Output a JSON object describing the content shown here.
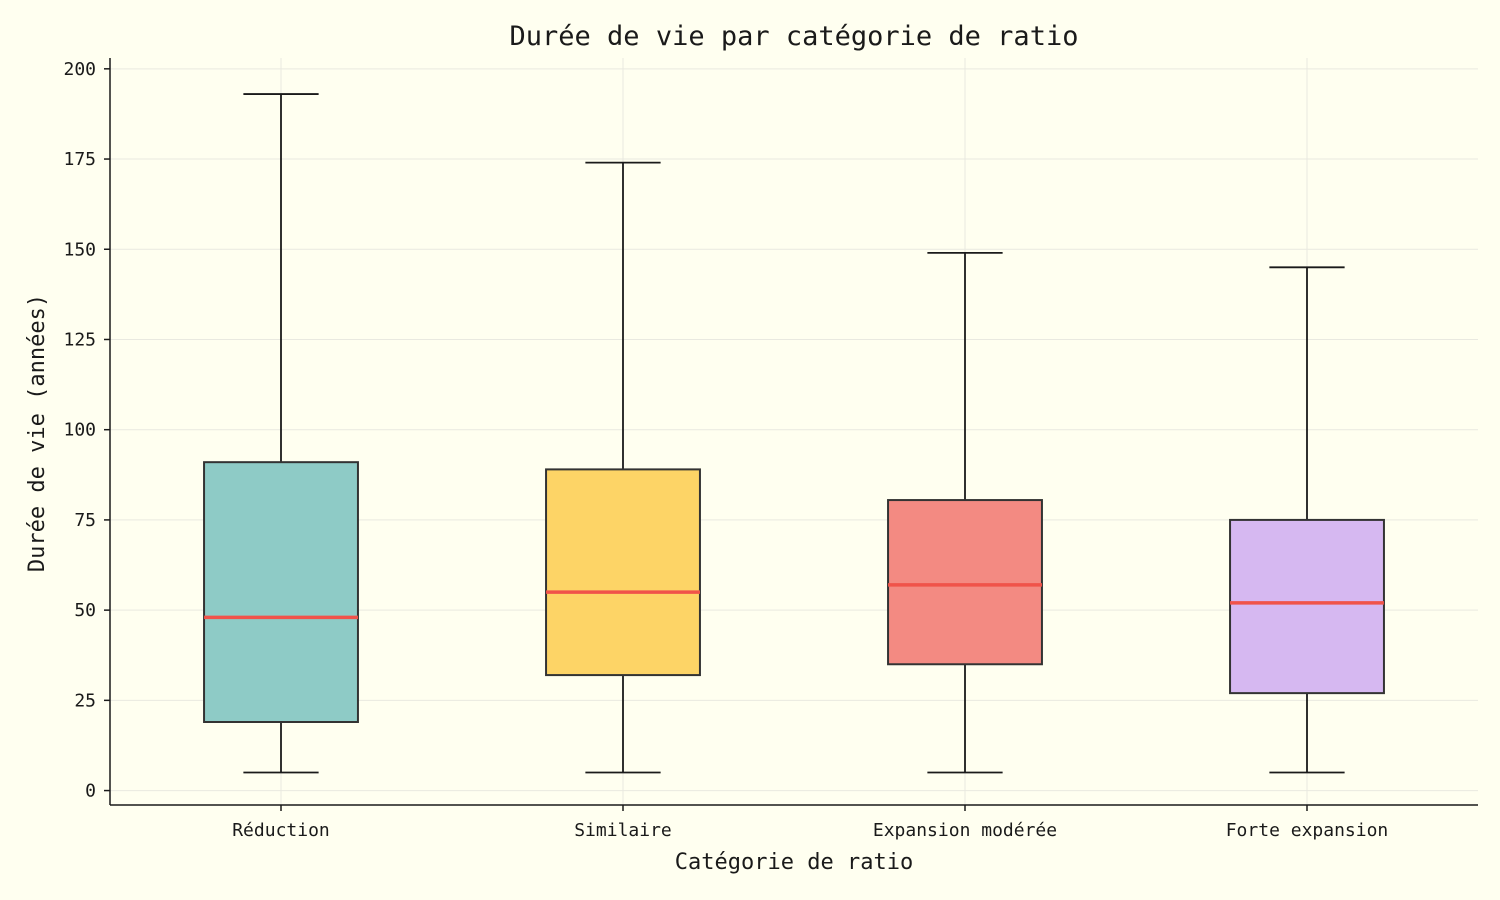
{
  "chart_data": {
    "type": "box",
    "title": "Durée de vie par catégorie de ratio",
    "xlabel": "Catégorie de ratio",
    "ylabel": "Durée de vie (années)",
    "ylim": [
      -4,
      203
    ],
    "yticks": [
      0,
      25,
      50,
      75,
      100,
      125,
      150,
      175,
      200
    ],
    "ytick_labels": [
      "0",
      "25",
      "50",
      "75",
      "100",
      "125",
      "150",
      "175",
      "200"
    ],
    "grid": true,
    "median_color": "#f0534a",
    "categories": [
      "Réduction",
      "Similaire",
      "Expansion modérée",
      "Forte expansion"
    ],
    "boxes": [
      {
        "category": "Réduction",
        "whisker_low": 5,
        "q1": 19,
        "median": 48,
        "q3": 91,
        "whisker_high": 193,
        "color": "#8ecbc6"
      },
      {
        "category": "Similaire",
        "whisker_low": 5,
        "q1": 32,
        "median": 55,
        "q3": 89,
        "whisker_high": 174,
        "color": "#fdd466"
      },
      {
        "category": "Expansion modérée",
        "whisker_low": 5,
        "q1": 35,
        "median": 57,
        "q3": 80.5,
        "whisker_high": 149,
        "color": "#f38a82"
      },
      {
        "category": "Forte expansion",
        "whisker_low": 5,
        "q1": 27,
        "median": 52,
        "q3": 75,
        "whisker_high": 145,
        "color": "#d6b8f1"
      }
    ]
  }
}
